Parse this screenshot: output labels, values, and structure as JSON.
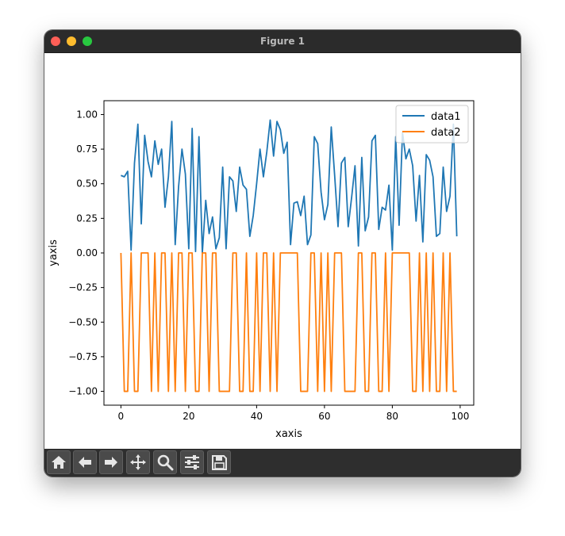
{
  "window": {
    "title": "Figure 1"
  },
  "toolbar": {
    "buttons": [
      {
        "icon": "home-icon"
      },
      {
        "icon": "back-arrow-icon"
      },
      {
        "icon": "forward-arrow-icon"
      },
      {
        "icon": "pan-icon"
      },
      {
        "icon": "zoom-icon"
      },
      {
        "icon": "configure-subplots-icon"
      },
      {
        "icon": "save-icon"
      }
    ]
  },
  "colors": {
    "data1": "#1f77b4",
    "data2": "#ff7f0e",
    "titlebar": "#2b2b2b",
    "toolbar": "#2e2e2e"
  },
  "chart_data": {
    "type": "line",
    "xlabel": "xaxis",
    "ylabel": "yaxis",
    "xlim": [
      -5,
      104
    ],
    "ylim": [
      -1.1,
      1.1
    ],
    "xticks": [
      0,
      20,
      40,
      60,
      80,
      100
    ],
    "xtick_labels": [
      "0",
      "20",
      "40",
      "60",
      "80",
      "100"
    ],
    "yticks": [
      1.0,
      0.75,
      0.5,
      0.25,
      0.0,
      -0.25,
      -0.5,
      -0.75,
      -1.0
    ],
    "ytick_labels": [
      "1.00",
      "0.75",
      "0.50",
      "0.25",
      "0.00",
      "−0.25",
      "−0.50",
      "−0.75",
      "−1.00"
    ],
    "grid": false,
    "legend": "top-right",
    "x": [
      0,
      1,
      2,
      3,
      4,
      5,
      6,
      7,
      8,
      9,
      10,
      11,
      12,
      13,
      14,
      15,
      16,
      17,
      18,
      19,
      20,
      21,
      22,
      23,
      24,
      25,
      26,
      27,
      28,
      29,
      30,
      31,
      32,
      33,
      34,
      35,
      36,
      37,
      38,
      39,
      40,
      41,
      42,
      43,
      44,
      45,
      46,
      47,
      48,
      49,
      50,
      51,
      52,
      53,
      54,
      55,
      56,
      57,
      58,
      59,
      60,
      61,
      62,
      63,
      64,
      65,
      66,
      67,
      68,
      69,
      70,
      71,
      72,
      73,
      74,
      75,
      76,
      77,
      78,
      79,
      80,
      81,
      82,
      83,
      84,
      85,
      86,
      87,
      88,
      89,
      90,
      91,
      92,
      93,
      94,
      95,
      96,
      97,
      98,
      99
    ],
    "series": [
      {
        "name": "data1",
        "values": [
          0.56,
          0.55,
          0.59,
          0.02,
          0.65,
          0.93,
          0.21,
          0.85,
          0.66,
          0.55,
          0.81,
          0.64,
          0.75,
          0.33,
          0.55,
          0.95,
          0.06,
          0.48,
          0.75,
          0.57,
          0.03,
          0.9,
          0.01,
          0.84,
          0.0,
          0.38,
          0.14,
          0.26,
          0.03,
          0.11,
          0.62,
          0.03,
          0.55,
          0.52,
          0.3,
          0.62,
          0.49,
          0.46,
          0.12,
          0.27,
          0.5,
          0.75,
          0.55,
          0.73,
          0.96,
          0.7,
          0.95,
          0.89,
          0.72,
          0.8,
          0.06,
          0.36,
          0.37,
          0.27,
          0.41,
          0.06,
          0.13,
          0.84,
          0.79,
          0.44,
          0.24,
          0.35,
          0.91,
          0.56,
          0.19,
          0.65,
          0.69,
          0.19,
          0.4,
          0.63,
          0.05,
          0.69,
          0.16,
          0.26,
          0.81,
          0.85,
          0.17,
          0.33,
          0.31,
          0.49,
          0.02,
          0.84,
          0.2,
          0.87,
          0.68,
          0.75,
          0.63,
          0.23,
          0.56,
          0.08,
          0.71,
          0.67,
          0.55,
          0.12,
          0.14,
          0.62,
          0.3,
          0.41,
          0.93,
          0.12
        ]
      },
      {
        "name": "data2",
        "values": [
          0,
          -1,
          -1,
          0,
          -1,
          -1,
          0,
          0,
          0,
          -1,
          0,
          -1,
          0,
          0,
          -1,
          0,
          -1,
          0,
          0,
          -1,
          0,
          0,
          -1,
          -1,
          0,
          0,
          -1,
          0,
          0,
          -1,
          -1,
          -1,
          -1,
          0,
          0,
          -1,
          -1,
          0,
          -1,
          -1,
          0,
          -1,
          0,
          0,
          -1,
          0,
          -1,
          0,
          0,
          0,
          0,
          0,
          0,
          -1,
          -1,
          -1,
          0,
          0,
          -1,
          0,
          -1,
          0,
          -1,
          0,
          0,
          0,
          -1,
          -1,
          -1,
          -1,
          0,
          0,
          -1,
          -1,
          0,
          0,
          -1,
          -1,
          0,
          -1,
          0,
          0,
          0,
          0,
          0,
          0,
          -1,
          -1,
          0,
          -1,
          0,
          -1,
          0,
          -1,
          -1,
          0,
          -1,
          0,
          -1,
          -1
        ]
      }
    ]
  }
}
